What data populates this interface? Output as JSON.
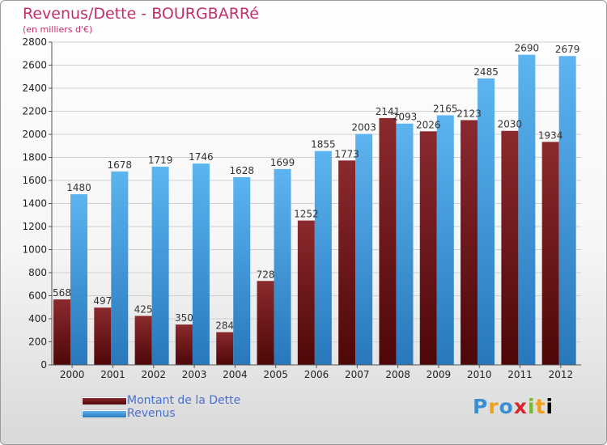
{
  "header": {
    "title": "Revenus/Dette - BOURGBARRé",
    "subtitle": "(en milliers d'€)"
  },
  "legend": {
    "items": [
      {
        "label": "Montant de la Dette",
        "color": "#7a1518"
      },
      {
        "label": "Revenus",
        "color": "#4aa3e8"
      }
    ]
  },
  "logo": {
    "text": "Proxiti",
    "letters": [
      "P",
      "r",
      "o",
      "x",
      "i",
      "t",
      "i"
    ]
  },
  "colors": {
    "dette_top": "#8a2a2e",
    "dette_bottom": "#4e0708",
    "revenus_top": "#5cb4f0",
    "revenus_bottom": "#2878bb",
    "axis": "#555555",
    "grid": "#d0d0d0"
  },
  "chart_data": {
    "type": "bar",
    "title": "Revenus/Dette - BOURGBARRé",
    "subtitle": "(en milliers d'€)",
    "categories": [
      "2000",
      "2001",
      "2002",
      "2003",
      "2004",
      "2005",
      "2006",
      "2007",
      "2008",
      "2009",
      "2010",
      "2011",
      "2012"
    ],
    "series": [
      {
        "name": "Montant de la Dette",
        "values": [
          568,
          497,
          425,
          350,
          284,
          728,
          1252,
          1773,
          2141,
          2026,
          2123,
          2030,
          1934
        ]
      },
      {
        "name": "Revenus",
        "values": [
          1480,
          1678,
          1719,
          1746,
          1628,
          1699,
          1855,
          2003,
          2093,
          2165,
          2485,
          2690,
          2679
        ]
      }
    ],
    "ylim": [
      0,
      2800
    ],
    "yticks": [
      0,
      200,
      400,
      600,
      800,
      1000,
      1200,
      1400,
      1600,
      1800,
      2000,
      2200,
      2400,
      2600,
      2800
    ],
    "grid": true,
    "legend_position": "bottom-left"
  }
}
